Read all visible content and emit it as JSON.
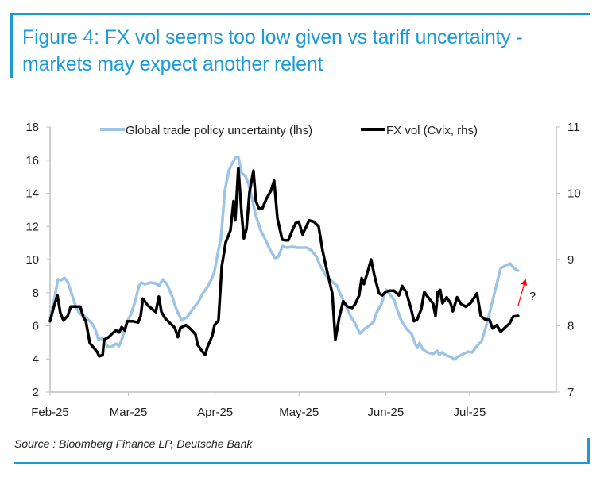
{
  "header": {
    "title": "Figure 4: FX vol seems too low given vs tariff uncertainty - markets may expect another relent"
  },
  "footer": {
    "source": "Source : Bloomberg Finance LP, Deutsche Bank"
  },
  "colors": {
    "brand": "#1a9bd7",
    "series_gtpu": "#9dc3e6",
    "series_cvix": "#000000",
    "annotation": "#ff0000",
    "axis": "#bfbfbf"
  },
  "chart_data": {
    "type": "line",
    "title": "Figure 4: FX vol seems too low given vs tariff uncertainty - markets may expect another relent",
    "x_unit": "days since 1-Feb-2025",
    "xlim": [
      0,
      181
    ],
    "x_ticks": [
      {
        "day": 0,
        "label": "Feb-25"
      },
      {
        "day": 28,
        "label": "Mar-25"
      },
      {
        "day": 59,
        "label": "Apr-25"
      },
      {
        "day": 89,
        "label": "May-25"
      },
      {
        "day": 120,
        "label": "Jun-25"
      },
      {
        "day": 150,
        "label": "Jul-25"
      }
    ],
    "y_left": {
      "label": "",
      "lim": [
        2,
        18
      ],
      "ticks": [
        "2",
        "4",
        "6",
        "8",
        "10",
        "12",
        "14",
        "16",
        "18"
      ]
    },
    "y_right": {
      "label": "",
      "lim": [
        7,
        11
      ],
      "ticks": [
        "7",
        "8",
        "9",
        "10",
        "11"
      ]
    },
    "grid": false,
    "legend": {
      "placement": "top-center",
      "entries": [
        "Global trade policy uncertainty (lhs)",
        "FX vol (Cvix, rhs)"
      ]
    },
    "series": [
      {
        "name": "Global trade policy uncertainty (lhs)",
        "axis": "left",
        "x": [
          0,
          1.4,
          2.8,
          4.0,
          5.1,
          6.3,
          7.7,
          9.1,
          10.5,
          12.2,
          13.4,
          15.1,
          16.2,
          17.3,
          18.5,
          19.6,
          20.7,
          21.9,
          23.6,
          24.7,
          25.9,
          27.6,
          29.0,
          30.4,
          31.8,
          32.7,
          33.8,
          36.1,
          37.8,
          38.9,
          40.3,
          41.8,
          43.5,
          45.2,
          46.9,
          48.9,
          50.9,
          53.1,
          54.5,
          56.0,
          57.7,
          58.8,
          59.9,
          61.1,
          62.5,
          63.9,
          65.1,
          66.5,
          67.3,
          68.5,
          69.9,
          71.0,
          72.2,
          73.6,
          75.3,
          77.0,
          78.7,
          80.4,
          81.5,
          83.2,
          84.7,
          86.6,
          88.4,
          90.1,
          91.8,
          93.5,
          95.2,
          96.6,
          98.6,
          100.9,
          102.6,
          103.7,
          105.7,
          107.4,
          109.1,
          110.8,
          112.2,
          114.2,
          115.6,
          117.0,
          118.5,
          120.2,
          121.3,
          123.0,
          124.1,
          125.6,
          127.6,
          129.3,
          130.4,
          131.3,
          132.1,
          133.2,
          134.9,
          136.9,
          138.4,
          139.2,
          140.1,
          141.8,
          143.5,
          144.6,
          145.5,
          147.2,
          149.4,
          150.9,
          152.6,
          154.3,
          156.0,
          157.7,
          159.4,
          161.1,
          163.1,
          164.5,
          165.9,
          167.3
        ],
        "values": [
          6.5,
          7.46,
          8.8,
          8.75,
          8.9,
          8.66,
          7.94,
          7.22,
          6.74,
          6.6,
          6.41,
          6.12,
          5.78,
          5.16,
          5.26,
          4.97,
          4.73,
          4.73,
          4.92,
          4.78,
          5.31,
          6.26,
          6.74,
          7.46,
          8.42,
          8.61,
          8.51,
          8.61,
          8.56,
          8.42,
          8.8,
          8.51,
          7.84,
          6.98,
          6.36,
          6.5,
          6.98,
          7.46,
          7.94,
          8.28,
          8.8,
          9.28,
          10.34,
          11.29,
          14.17,
          15.37,
          15.8,
          16.18,
          16.18,
          15.22,
          15.03,
          14.55,
          13.69,
          12.63,
          11.77,
          11.2,
          10.57,
          10.1,
          10.14,
          10.81,
          10.72,
          10.77,
          10.72,
          10.72,
          10.72,
          10.53,
          10.19,
          9.62,
          9.04,
          8.66,
          8.42,
          7.94,
          7.22,
          6.6,
          6.12,
          5.54,
          5.78,
          6.02,
          6.22,
          6.89,
          7.32,
          8.18,
          7.94,
          7.56,
          6.98,
          6.31,
          5.78,
          5.5,
          4.97,
          4.68,
          4.97,
          4.59,
          4.4,
          4.3,
          4.49,
          4.25,
          4.4,
          4.2,
          4.11,
          3.96,
          4.11,
          4.25,
          4.44,
          4.4,
          4.78,
          5.07,
          6.02,
          7.17,
          8.32,
          9.47,
          9.66,
          9.76,
          9.47,
          9.33
        ]
      },
      {
        "name": "FX vol (Cvix, rhs)",
        "axis": "right",
        "x": [
          0,
          1.1,
          2.6,
          3.7,
          4.8,
          6.3,
          7.4,
          9.1,
          10.8,
          11.9,
          12.8,
          14.2,
          15.6,
          16.8,
          17.6,
          18.8,
          19.3,
          21.0,
          22.4,
          23.6,
          24.7,
          25.6,
          26.7,
          27.6,
          29.5,
          31.5,
          32.4,
          33.2,
          34.9,
          36.6,
          37.8,
          38.9,
          39.8,
          41.2,
          42.9,
          44.6,
          45.7,
          46.6,
          48.6,
          50.3,
          52.0,
          52.8,
          54.5,
          55.4,
          56.3,
          58.0,
          58.8,
          60.2,
          61.4,
          62.8,
          64.5,
          65.6,
          66.2,
          67.3,
          68.5,
          69.3,
          70.2,
          71.3,
          72.7,
          73.6,
          74.7,
          75.9,
          77.3,
          79.0,
          80.1,
          81.3,
          83.0,
          84.1,
          85.2,
          86.6,
          87.8,
          88.9,
          90.3,
          92.6,
          94.3,
          96.0,
          97.4,
          99.1,
          100.9,
          102.0,
          103.4,
          104.8,
          106.3,
          108.0,
          109.1,
          110.5,
          111.4,
          112.2,
          113.1,
          114.8,
          115.9,
          117.6,
          118.8,
          119.9,
          121.3,
          123.0,
          124.7,
          125.9,
          127.3,
          129.0,
          130.1,
          131.3,
          132.7,
          133.8,
          135.5,
          136.9,
          137.8,
          138.6,
          139.5,
          140.3,
          141.8,
          143.2,
          144.0,
          145.5,
          146.9,
          148.6,
          150.3,
          152.6,
          154.0,
          155.4,
          157.1,
          158.2,
          159.7,
          161.1,
          162.8,
          164.2,
          165.6,
          167.3
        ],
        "values": [
          8.07,
          8.25,
          8.46,
          8.19,
          8.08,
          8.15,
          8.29,
          8.29,
          8.29,
          8.13,
          8.07,
          7.74,
          7.67,
          7.61,
          7.54,
          7.56,
          7.79,
          7.83,
          7.89,
          7.93,
          7.9,
          7.98,
          7.93,
          8.07,
          8.07,
          8.05,
          8.15,
          8.41,
          8.31,
          8.25,
          8.21,
          8.44,
          8.21,
          8.11,
          8.04,
          7.97,
          7.83,
          7.97,
          8.01,
          7.95,
          7.87,
          7.71,
          7.61,
          7.56,
          7.68,
          7.85,
          8.01,
          8.08,
          8.9,
          9.26,
          9.44,
          9.88,
          9.59,
          10.38,
          9.68,
          9.32,
          9.46,
          10.01,
          10.34,
          9.88,
          9.77,
          9.77,
          9.91,
          10.04,
          10.19,
          9.62,
          9.3,
          9.29,
          9.29,
          9.44,
          9.55,
          9.57,
          9.38,
          9.59,
          9.57,
          9.5,
          9.14,
          8.81,
          8.49,
          7.79,
          8.13,
          8.37,
          8.29,
          8.27,
          8.33,
          8.46,
          8.72,
          8.63,
          8.75,
          9.0,
          8.77,
          8.49,
          8.46,
          8.51,
          8.53,
          8.53,
          8.46,
          8.6,
          8.51,
          8.27,
          8.07,
          8.1,
          8.25,
          8.51,
          8.41,
          8.34,
          8.15,
          8.51,
          8.54,
          8.34,
          8.43,
          8.34,
          8.22,
          8.43,
          8.33,
          8.29,
          8.34,
          8.49,
          8.15,
          8.1,
          8.09,
          7.96,
          8.01,
          7.91,
          7.98,
          8.03,
          8.14,
          8.15
        ]
      }
    ],
    "annotations": [
      {
        "type": "arrow",
        "axis": "left",
        "from": [
          167.3,
          7.2
        ],
        "to": [
          169.9,
          8.75
        ],
        "color": "#ff0000"
      },
      {
        "type": "text",
        "axis": "left",
        "at": [
          171.3,
          7.55
        ],
        "text": "?"
      }
    ]
  }
}
